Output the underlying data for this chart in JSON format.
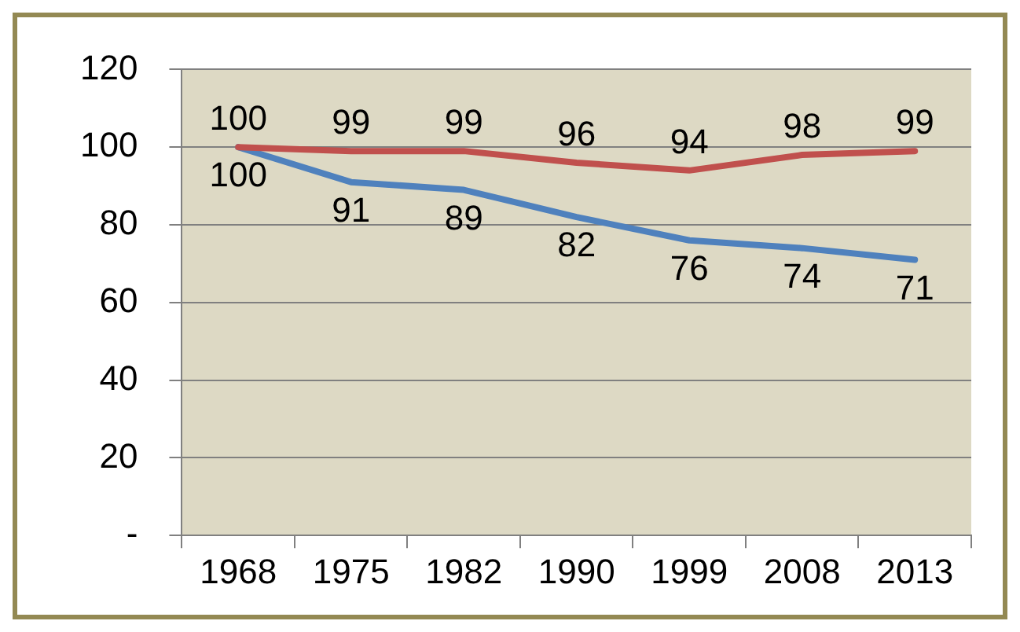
{
  "chart_data": {
    "type": "line",
    "categories": [
      "1968",
      "1975",
      "1982",
      "1990",
      "1999",
      "2008",
      "2013"
    ],
    "series": [
      {
        "color": "#c0504d",
        "values": [
          100,
          99,
          99,
          96,
          94,
          98,
          99
        ]
      },
      {
        "color": "#4f81bd",
        "values": [
          100,
          91,
          89,
          82,
          76,
          74,
          71
        ]
      }
    ],
    "ylim": [
      0,
      120
    ],
    "yticks": [
      {
        "value": 0,
        "label": "-"
      },
      20,
      40,
      60,
      80,
      100,
      120
    ],
    "grid": "y",
    "legend": false,
    "marker": "none",
    "line_style": "solid",
    "data_labels": true
  }
}
